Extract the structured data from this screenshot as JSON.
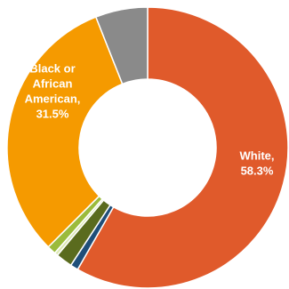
{
  "chart_data": {
    "type": "pie",
    "donut": true,
    "title": "",
    "legend": "none",
    "slices": [
      {
        "label": "White",
        "value": 58.3,
        "color": "#E05A2B",
        "shown_label": "White, 58.3%",
        "label_lines": [
          "White,",
          "58.3%"
        ]
      },
      {
        "label": "",
        "value": 0.9,
        "color": "#1F4E79",
        "shown_label": ""
      },
      {
        "label": "",
        "value": 1.9,
        "color": "#5A6B1E",
        "shown_label": ""
      },
      {
        "label": "",
        "value": 0.4,
        "color": "#DCE8B4",
        "shown_label": ""
      },
      {
        "label": "",
        "value": 1.0,
        "color": "#9BBB3B",
        "shown_label": ""
      },
      {
        "label": "Black or African American",
        "value": 31.5,
        "color": "#F59A00",
        "shown_label": "Black or African American, 31.5%",
        "label_lines": [
          "Black or",
          "African",
          "American,",
          "31.5%"
        ]
      },
      {
        "label": "",
        "value": 6.0,
        "color": "#8A8A8A",
        "shown_label": ""
      }
    ]
  }
}
